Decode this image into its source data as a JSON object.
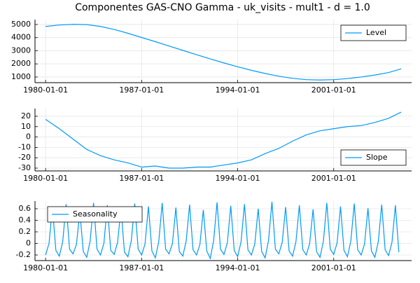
{
  "chart_data": [
    {
      "type": "line",
      "title": "Componentes GAS-CNO Gamma - uk_visits - mult1 - d = 1.0",
      "x": [
        "1980-01-01",
        "1981-01-01",
        "1982-01-01",
        "1983-01-01",
        "1984-01-01",
        "1985-01-01",
        "1986-01-01",
        "1987-01-01",
        "1988-01-01",
        "1989-01-01",
        "1990-01-01",
        "1991-01-01",
        "1992-01-01",
        "1993-01-01",
        "1994-01-01",
        "1995-01-01",
        "1996-01-01",
        "1997-01-01",
        "1998-01-01",
        "1999-01-01",
        "2000-01-01",
        "2001-01-01",
        "2002-01-01",
        "2003-01-01",
        "2004-01-01",
        "2005-01-01",
        "2005-12-01"
      ],
      "series": [
        {
          "name": "Level",
          "color": "#009af9",
          "values": [
            4850,
            4960,
            5010,
            4990,
            4850,
            4620,
            4330,
            4010,
            3690,
            3360,
            3030,
            2700,
            2380,
            2070,
            1780,
            1510,
            1270,
            1060,
            900,
            800,
            770,
            800,
            880,
            1000,
            1150,
            1340,
            1620
          ]
        }
      ],
      "xlim": [
        "1979-03-25",
        "2006-09-05"
      ],
      "xticks": [
        "1980-01-01",
        "1987-01-01",
        "1994-01-01",
        "2001-01-01"
      ],
      "ylim": [
        570,
        5370
      ],
      "yticks": [
        1000,
        2000,
        3000,
        4000,
        5000
      ],
      "grid": true,
      "legend": "top-right"
    },
    {
      "type": "line",
      "x": [
        "1980-01-01",
        "1981-01-01",
        "1982-01-01",
        "1983-01-01",
        "1984-01-01",
        "1985-01-01",
        "1986-01-01",
        "1987-01-01",
        "1988-01-01",
        "1989-01-01",
        "1990-01-01",
        "1991-01-01",
        "1992-01-01",
        "1993-01-01",
        "1994-01-01",
        "1995-01-01",
        "1996-01-01",
        "1997-01-01",
        "1998-01-01",
        "1999-01-01",
        "2000-01-01",
        "2001-01-01",
        "2002-01-01",
        "2003-01-01",
        "2004-01-01",
        "2005-01-01",
        "2005-12-01"
      ],
      "series": [
        {
          "name": "Slope",
          "color": "#009af9",
          "values": [
            17,
            8,
            -2,
            -12,
            -18,
            -22,
            -25,
            -29,
            -28,
            -30,
            -30,
            -29,
            -29,
            -27,
            -25,
            -22,
            -16,
            -11,
            -4,
            2,
            6,
            8,
            10,
            11,
            14,
            18,
            24
          ]
        }
      ],
      "xlim": [
        "1979-03-25",
        "2006-09-05"
      ],
      "xticks": [
        "1980-01-01",
        "1987-01-01",
        "1994-01-01",
        "2001-01-01"
      ],
      "ylim": [
        -32.7,
        27.4
      ],
      "yticks": [
        -30,
        -20,
        -10,
        0,
        10,
        20
      ],
      "grid": true,
      "legend": "bottom-right"
    },
    {
      "type": "line",
      "x": [
        "1980-01-01",
        "1980-04-01",
        "1980-07-01",
        "1980-10-01",
        "1981-01-01",
        "1981-04-01",
        "1981-07-01",
        "1981-10-01",
        "1982-01-01",
        "1982-04-01",
        "1982-07-01",
        "1982-10-01",
        "1983-01-01",
        "1983-04-01",
        "1983-07-01",
        "1983-10-01",
        "1984-01-01",
        "1984-04-01",
        "1984-07-01",
        "1984-10-01",
        "1985-01-01",
        "1985-04-01",
        "1985-07-01",
        "1985-10-01",
        "1986-01-01",
        "1986-04-01",
        "1986-07-01",
        "1986-10-01",
        "1987-01-01",
        "1987-04-01",
        "1987-07-01",
        "1987-10-01",
        "1988-01-01",
        "1988-04-01",
        "1988-07-01",
        "1988-10-01",
        "1989-01-01",
        "1989-04-01",
        "1989-07-01",
        "1989-10-01",
        "1990-01-01",
        "1990-04-01",
        "1990-07-01",
        "1990-10-01",
        "1991-01-01",
        "1991-04-01",
        "1991-07-01",
        "1991-10-01",
        "1992-01-01",
        "1992-04-01",
        "1992-07-01",
        "1992-10-01",
        "1993-01-01",
        "1993-04-01",
        "1993-07-01",
        "1993-10-01",
        "1994-01-01",
        "1994-04-01",
        "1994-07-01",
        "1994-10-01",
        "1995-01-01",
        "1995-04-01",
        "1995-07-01",
        "1995-10-01",
        "1996-01-01",
        "1996-04-01",
        "1996-07-01",
        "1996-10-01",
        "1997-01-01",
        "1997-04-01",
        "1997-07-01",
        "1997-10-01",
        "1998-01-01",
        "1998-04-01",
        "1998-07-01",
        "1998-10-01",
        "1999-01-01",
        "1999-04-01",
        "1999-07-01",
        "1999-10-01",
        "2000-01-01",
        "2000-04-01",
        "2000-07-01",
        "2000-10-01",
        "2001-01-01",
        "2001-04-01",
        "2001-07-01",
        "2001-10-01",
        "2002-01-01",
        "2002-04-01",
        "2002-07-01",
        "2002-10-01",
        "2003-01-01",
        "2003-04-01",
        "2003-07-01",
        "2003-10-01",
        "2004-01-01",
        "2004-04-01",
        "2004-07-01",
        "2004-10-01",
        "2005-01-01",
        "2005-04-01",
        "2005-07-01",
        "2005-10-01"
      ],
      "series": [
        {
          "name": "Seasonality",
          "color": "#009af9",
          "values": [
            -0.2,
            0.0,
            0.62,
            -0.12,
            -0.22,
            0.03,
            0.68,
            -0.1,
            -0.18,
            -0.02,
            0.55,
            -0.14,
            -0.24,
            0.04,
            0.7,
            -0.1,
            -0.2,
            0.0,
            0.66,
            -0.12,
            -0.19,
            0.02,
            0.6,
            -0.15,
            -0.23,
            0.05,
            0.69,
            -0.1,
            -0.2,
            -0.01,
            0.64,
            -0.13,
            -0.25,
            0.03,
            0.7,
            -0.1,
            -0.18,
            0.0,
            0.62,
            -0.14,
            -0.22,
            0.04,
            0.67,
            -0.11,
            -0.2,
            -0.02,
            0.58,
            -0.13,
            -0.26,
            0.05,
            0.71,
            -0.1,
            -0.19,
            0.01,
            0.65,
            -0.12,
            -0.23,
            0.03,
            0.68,
            -0.11,
            -0.2,
            -0.01,
            0.6,
            -0.14,
            -0.25,
            0.05,
            0.72,
            -0.1,
            -0.18,
            0.02,
            0.63,
            -0.13,
            -0.22,
            0.03,
            0.66,
            -0.11,
            -0.2,
            0.0,
            0.59,
            -0.14,
            -0.24,
            0.04,
            0.7,
            -0.1,
            -0.19,
            0.01,
            0.64,
            -0.12,
            -0.23,
            0.04,
            0.69,
            -0.11,
            -0.2,
            -0.01,
            0.61,
            -0.13,
            -0.24,
            0.03,
            0.67,
            -0.11,
            -0.21,
            0.02,
            0.66,
            -0.15
          ]
        }
      ],
      "xlim": [
        "1979-03-25",
        "2006-09-05"
      ],
      "xticks": [
        "1980-01-01",
        "1987-01-01",
        "1994-01-01",
        "2001-01-01"
      ],
      "ylim": [
        -0.297,
        0.733
      ],
      "yticks": [
        -0.2,
        0.0,
        0.2,
        0.4,
        0.6
      ],
      "grid": true,
      "legend": "top-left"
    }
  ]
}
